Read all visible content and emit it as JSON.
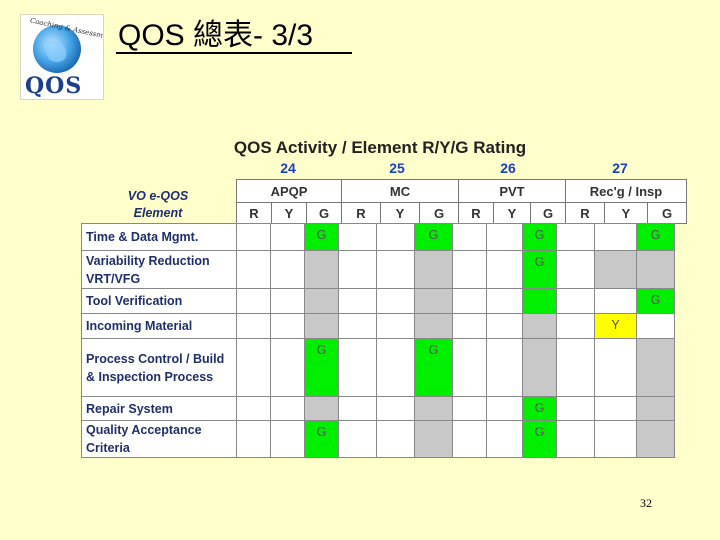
{
  "slide": {
    "title": "QOS 總表- 3/3",
    "page_number": "32"
  },
  "logo": {
    "arc_text": "Coaching & Assessment",
    "word": "QOS"
  },
  "chart": {
    "title": "QOS Activity / Element R/Y/G Rating",
    "row_label_header": "VO e-QOS Element",
    "groups": [
      {
        "number": "24",
        "name": "APQP"
      },
      {
        "number": "25",
        "name": "MC"
      },
      {
        "number": "26",
        "name": "PVT"
      },
      {
        "number": "27",
        "name": "Rec'g / Insp"
      }
    ],
    "rating_labels": [
      "R",
      "Y",
      "G"
    ],
    "rows": [
      {
        "element": "Time & Data Mgmt.",
        "cells": [
          "",
          "",
          "G",
          "",
          "",
          "G",
          "",
          "",
          "G",
          "",
          "",
          "G"
        ],
        "fills": [
          "w",
          "w",
          "green",
          "w",
          "w",
          "green",
          "w",
          "w",
          "green",
          "w",
          "w",
          "green"
        ]
      },
      {
        "element": "Variability Reduction VRT/VFG",
        "cells": [
          "",
          "",
          "",
          "",
          "",
          "",
          "",
          "",
          "G",
          "",
          "",
          ""
        ],
        "fills": [
          "w",
          "w",
          "gray",
          "w",
          "w",
          "gray",
          "w",
          "w",
          "green",
          "w",
          "gray",
          "gray"
        ]
      },
      {
        "element": "Tool Verification",
        "cells": [
          "",
          "",
          "",
          "",
          "",
          "",
          "",
          "",
          "",
          "",
          "",
          "G"
        ],
        "fills": [
          "w",
          "w",
          "gray",
          "w",
          "w",
          "gray",
          "w",
          "w",
          "green",
          "w",
          "w",
          "green"
        ]
      },
      {
        "element": "Incoming Material",
        "cells": [
          "",
          "",
          "",
          "",
          "",
          "",
          "",
          "",
          "",
          "",
          "Y",
          ""
        ],
        "fills": [
          "w",
          "w",
          "gray",
          "w",
          "w",
          "gray",
          "w",
          "w",
          "gray",
          "w",
          "yellow",
          "w"
        ]
      },
      {
        "element": "Process Control / Build & Inspection Process",
        "cells": [
          "",
          "",
          "G",
          "",
          "",
          "G",
          "",
          "",
          "",
          "",
          "",
          ""
        ],
        "fills": [
          "w",
          "w",
          "green",
          "w",
          "w",
          "green",
          "w",
          "w",
          "gray",
          "w",
          "w",
          "gray"
        ]
      },
      {
        "element": "Repair System",
        "cells": [
          "",
          "",
          "",
          "",
          "",
          "",
          "",
          "",
          "G",
          "",
          "",
          ""
        ],
        "fills": [
          "w",
          "w",
          "gray",
          "w",
          "w",
          "gray",
          "w",
          "w",
          "green",
          "w",
          "w",
          "gray"
        ]
      },
      {
        "element": "Quality Acceptance Criteria",
        "cells": [
          "",
          "",
          "G",
          "",
          "",
          "",
          "",
          "",
          "G",
          "",
          "",
          ""
        ],
        "fills": [
          "w",
          "w",
          "green",
          "w",
          "w",
          "gray",
          "w",
          "w",
          "green",
          "w",
          "w",
          "gray"
        ]
      }
    ]
  },
  "colors": {
    "background": "#ffffcc",
    "green": "#00ee00",
    "yellow": "#ffff00",
    "gray": "#c8c8c8",
    "group_number": "#1a3fc4",
    "element_text": "#1f2f6b"
  }
}
